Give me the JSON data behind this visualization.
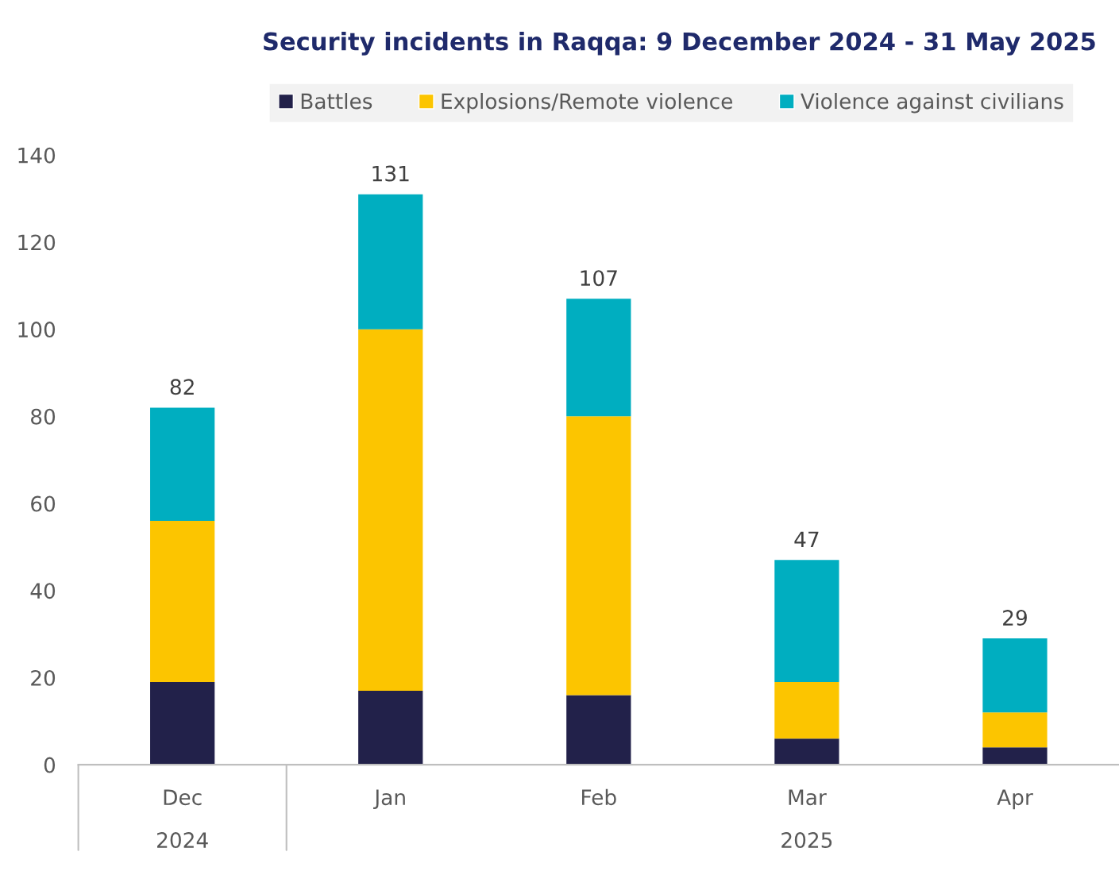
{
  "chart_data": {
    "type": "bar",
    "title": "Security incidents in Raqqa: 9 December 2024 - 31 May 2025",
    "categories": [
      "Dec",
      "Jan",
      "Feb",
      "Mar",
      "Apr"
    ],
    "series": [
      {
        "name": "Battles",
        "color": "#22214a",
        "values": [
          19,
          17,
          16,
          6,
          4
        ]
      },
      {
        "name": "Explosions/Remote violence",
        "color": "#fcc500",
        "values": [
          37,
          83,
          64,
          13,
          8
        ]
      },
      {
        "name": "Violence against civilians",
        "color": "#00aec0",
        "values": [
          26,
          31,
          27,
          28,
          17
        ]
      }
    ],
    "stacked": true,
    "totals": [
      "82",
      "131",
      "107",
      "47",
      "29"
    ],
    "ylim": [
      0,
      140
    ],
    "yticks": [
      0,
      20,
      40,
      60,
      80,
      100,
      120,
      140
    ],
    "grid": false,
    "legend": "top",
    "annotations": [
      "2024",
      "2025"
    ]
  }
}
